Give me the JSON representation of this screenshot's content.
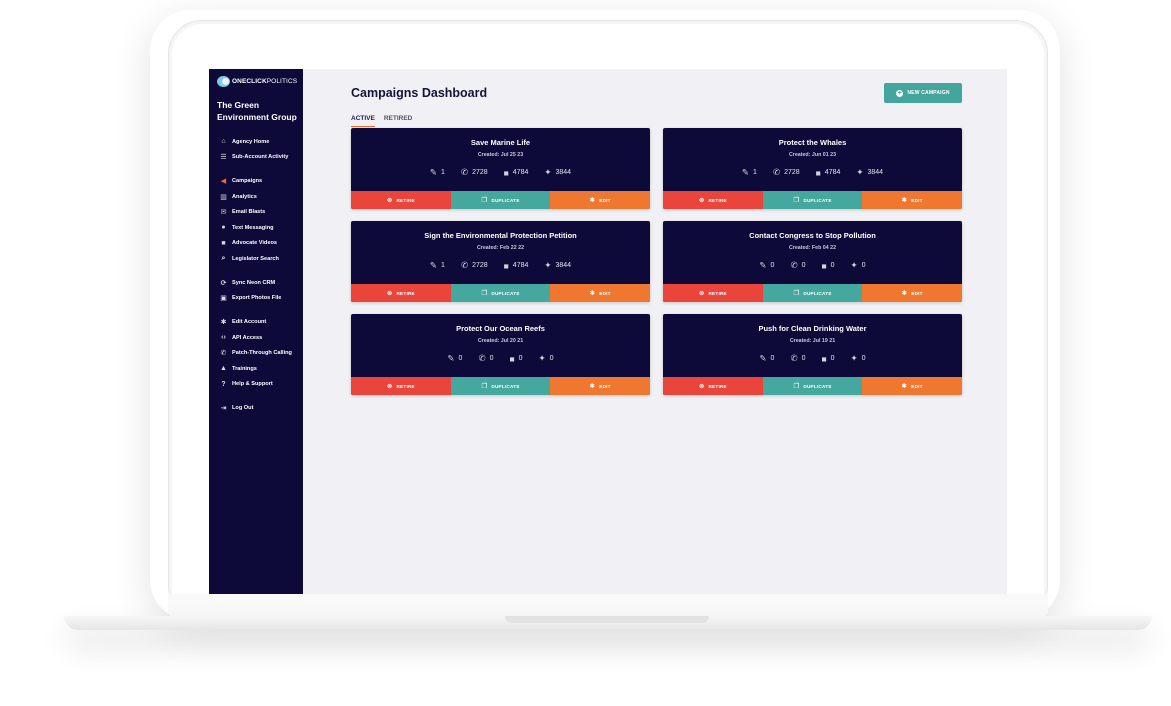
{
  "logo": {
    "bold": "ONECLICK",
    "light": "POLITICS"
  },
  "org_name": "The Green Environment Group",
  "nav_groups": [
    [
      {
        "label": "Agency Home",
        "icon": "home-icon"
      },
      {
        "label": "Sub-Account Activity",
        "icon": "list-icon"
      }
    ],
    [
      {
        "label": "Campaigns",
        "icon": "megaphone-icon",
        "active": true
      },
      {
        "label": "Analytics",
        "icon": "chart-icon"
      },
      {
        "label": "Email Blasts",
        "icon": "envelope-icon"
      },
      {
        "label": "Text Messaging",
        "icon": "chat-icon"
      },
      {
        "label": "Advocate Videos",
        "icon": "video-icon"
      },
      {
        "label": "Legislator Search",
        "icon": "search-icon"
      }
    ],
    [
      {
        "label": "Sync Neon CRM",
        "icon": "sync-icon"
      },
      {
        "label": "Export Photos File",
        "icon": "photos-icon"
      }
    ],
    [
      {
        "label": "Edit Account",
        "icon": "gear-icon"
      },
      {
        "label": "API Access",
        "icon": "code-icon"
      },
      {
        "label": "Patch-Through Calling",
        "icon": "phone-icon"
      },
      {
        "label": "Trainings",
        "icon": "graduation-icon"
      },
      {
        "label": "Help & Support",
        "icon": "question-icon"
      }
    ],
    [
      {
        "label": "Log Out",
        "icon": "logout-icon"
      }
    ]
  ],
  "page_title": "Campaigns Dashboard",
  "new_campaign_label": "NEW CAMPAIGN",
  "tabs": [
    {
      "label": "ACTIVE",
      "active": true
    },
    {
      "label": "RETIRED",
      "active": false
    }
  ],
  "action_labels": {
    "retire": "RETIRE",
    "duplicate": "DUPLICATE",
    "edit": "EDIT"
  },
  "campaigns": [
    {
      "title": "Save Marine Life",
      "created": "Created: Jul 25 23",
      "letters": "1",
      "calls": "2728",
      "videos": "4784",
      "tweets": "3844"
    },
    {
      "title": "Protect the Whales",
      "created": "Created: Jun 01 23",
      "letters": "1",
      "calls": "2728",
      "videos": "4784",
      "tweets": "3844"
    },
    {
      "title": "Sign the Environmental Protection Petition",
      "created": "Created: Feb 22 22",
      "letters": "1",
      "calls": "2728",
      "videos": "4784",
      "tweets": "3844"
    },
    {
      "title": "Contact Congress to Stop Pollution",
      "created": "Created: Feb 04 22",
      "letters": "0",
      "calls": "0",
      "videos": "0",
      "tweets": "0"
    },
    {
      "title": "Protect Our Ocean Reefs",
      "created": "Created: Jul 20 21",
      "letters": "0",
      "calls": "0",
      "videos": "0",
      "tweets": "0"
    },
    {
      "title": "Push for Clean Drinking Water",
      "created": "Created: Jul 19 21",
      "letters": "0",
      "calls": "0",
      "videos": "0",
      "tweets": "0"
    }
  ],
  "colors": {
    "sidebar": "#0d0a3a",
    "accent": "#f06a35",
    "teal": "#43a59c",
    "retire": "#e9453a",
    "edit": "#f07730"
  }
}
